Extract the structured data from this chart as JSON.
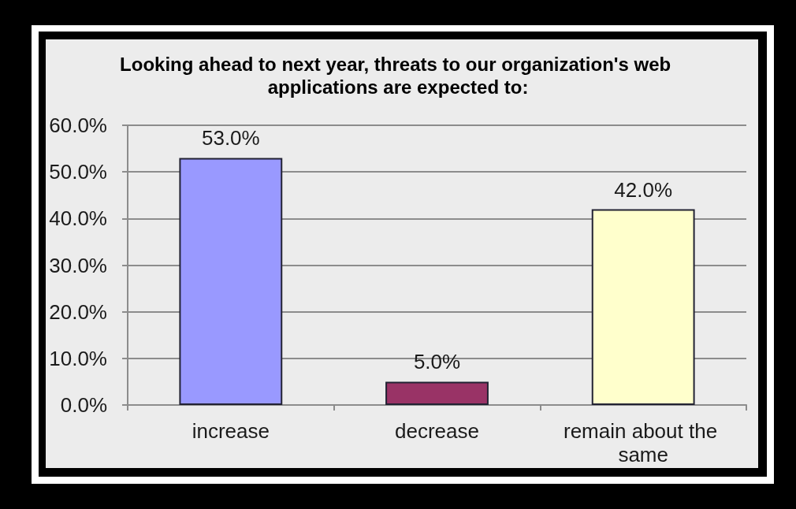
{
  "chart_data": {
    "type": "bar",
    "title": "Looking ahead to next year, threats to our organization's web applications are expected to:",
    "categories": [
      "increase",
      "decrease",
      "remain about the same"
    ],
    "values": [
      53.0,
      5.0,
      42.0
    ],
    "colors": [
      "#9999ff",
      "#993366",
      "#ffffcc"
    ],
    "value_labels": [
      "53.0%",
      "5.0%",
      "42.0%"
    ],
    "ylim": [
      0,
      60
    ],
    "yticks": [
      {
        "value": 0,
        "label": "0.0%"
      },
      {
        "value": 10,
        "label": "10.0%"
      },
      {
        "value": 20,
        "label": "20.0%"
      },
      {
        "value": 30,
        "label": "30.0%"
      },
      {
        "value": 40,
        "label": "40.0%"
      },
      {
        "value": 50,
        "label": "50.0%"
      },
      {
        "value": 60,
        "label": "60.0%"
      }
    ],
    "grid": "y"
  }
}
